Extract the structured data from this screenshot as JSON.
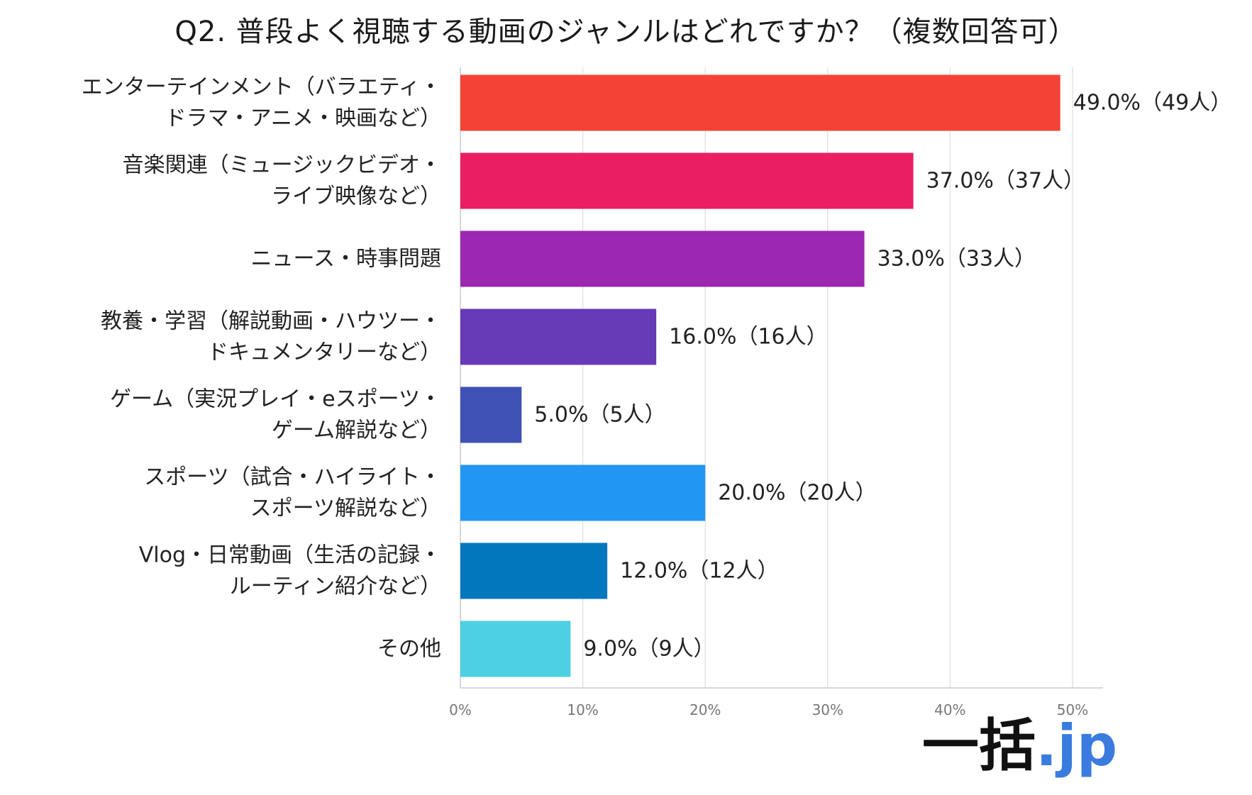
{
  "chart_data": {
    "type": "bar",
    "orientation": "horizontal",
    "title": "Q2. 普段よく視聴する動画のジャンルはどれですか？（複数回答可）",
    "categories": [
      [
        "エンターテインメント（バラエティ・",
        "ドラマ・アニメ・映画など）"
      ],
      [
        "音楽関連（ミュージックビデオ・",
        "ライブ映像など）"
      ],
      [
        "ニュース・時事問題"
      ],
      [
        "教養・学習（解説動画・ハウツー・",
        "ドキュメンタリーなど）"
      ],
      [
        "ゲーム（実況プレイ・eスポーツ・",
        "ゲーム解説など）"
      ],
      [
        "スポーツ（試合・ハイライト・",
        "スポーツ解説など）"
      ],
      [
        "Vlog・日常動画（生活の記録・",
        "ルーティン紹介など）"
      ],
      [
        "その他"
      ]
    ],
    "values": [
      49.0,
      37.0,
      33.0,
      16.0,
      5.0,
      20.0,
      12.0,
      9.0
    ],
    "data_labels": [
      "49.0%（49人）",
      "37.0%（37人）",
      "33.0%（33人）",
      "16.0%（16人）",
      "5.0%（5人）",
      "20.0%（20人）",
      "12.0%（12人）",
      "9.0%（9人）"
    ],
    "colors": [
      "#f44336",
      "#e91e63",
      "#9c27b0",
      "#673ab7",
      "#3f51b5",
      "#2196f3",
      "#0277bd",
      "#4dd0e1"
    ],
    "xlim": [
      0,
      52
    ],
    "xticks": [
      0,
      10,
      20,
      30,
      40,
      50
    ],
    "xtick_labels": [
      "0%",
      "10%",
      "20%",
      "30%",
      "40%",
      "50%"
    ],
    "grid": true
  },
  "logo": {
    "main": "一括",
    "accent": ".jp"
  }
}
